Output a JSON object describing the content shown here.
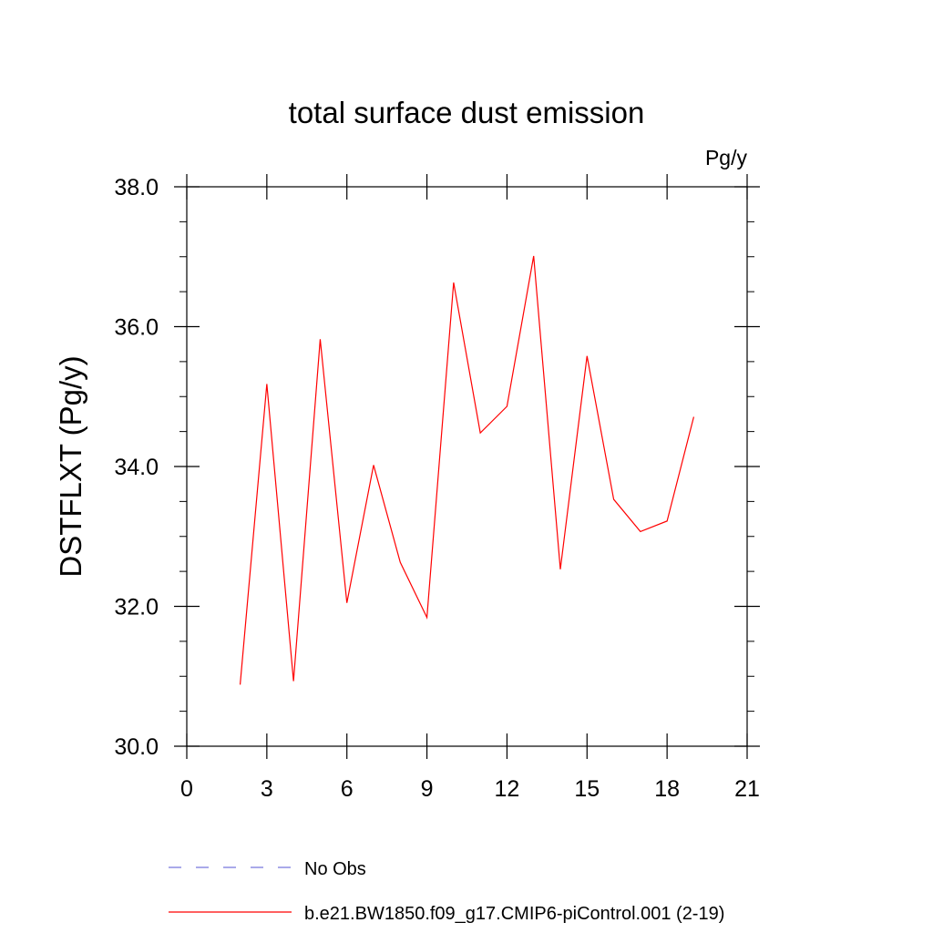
{
  "chart_data": {
    "type": "line",
    "title": "total surface dust emission",
    "units": "Pg/y",
    "xlabel": "",
    "ylabel": "DSTFLXT  (Pg/y)",
    "xlim": [
      0,
      21
    ],
    "ylim": [
      30.0,
      38.0
    ],
    "x_ticks": [
      "0",
      "3",
      "6",
      "9",
      "12",
      "15",
      "18",
      "21"
    ],
    "y_ticks": [
      "30.0",
      "32.0",
      "34.0",
      "36.0",
      "38.0"
    ],
    "grid": false,
    "legend_position": "bottom",
    "series": [
      {
        "name": "b.e21.BW1850.f09_g17.CMIP6-piControl.001 (2-19)",
        "color": "#ff0000",
        "style": "solid",
        "x": [
          2,
          3,
          4,
          5,
          6,
          7,
          8,
          9,
          10,
          11,
          12,
          13,
          14,
          15,
          16,
          17,
          18,
          19
        ],
        "values": [
          30.88,
          35.18,
          30.93,
          35.82,
          32.05,
          34.02,
          32.63,
          31.84,
          36.63,
          34.48,
          34.86,
          37.01,
          32.53,
          35.58,
          33.53,
          33.07,
          33.22,
          34.71
        ]
      },
      {
        "name": "No Obs",
        "color": "#7777dd",
        "style": "dashed",
        "x": [],
        "values": []
      }
    ]
  }
}
